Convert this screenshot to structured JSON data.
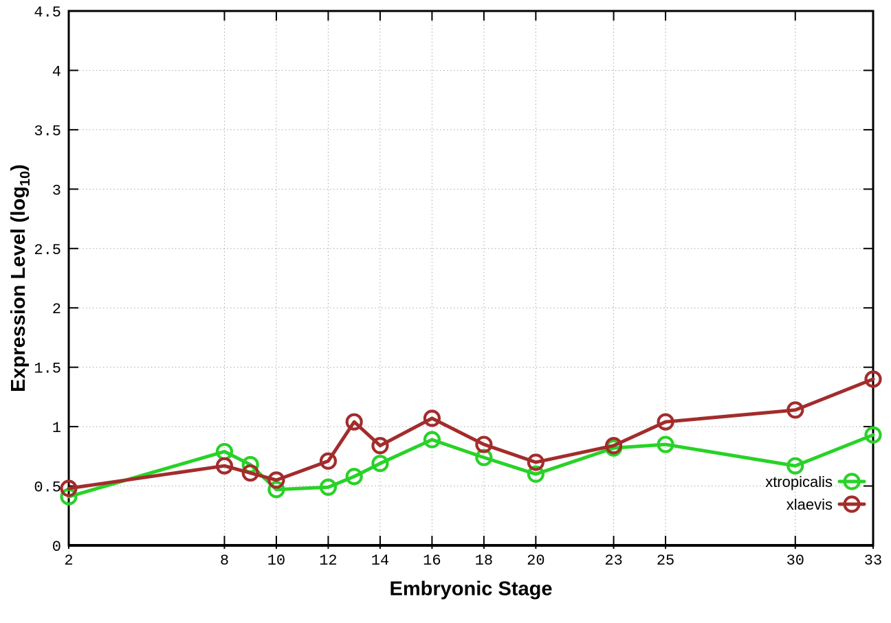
{
  "chart_data": {
    "type": "line",
    "title": "",
    "xlabel": "Embryonic Stage",
    "ylabel": "Expression Level (log10)",
    "ylabel_parts": {
      "main": "Expression Level (log",
      "sub": "10",
      "end": ")"
    },
    "x": [
      2,
      8,
      9,
      10,
      12,
      13,
      14,
      16,
      18,
      20,
      23,
      25,
      30,
      33
    ],
    "series": [
      {
        "name": "xtropicalis",
        "color": "#28d228",
        "values": [
          0.41,
          0.79,
          0.68,
          0.47,
          0.49,
          0.58,
          0.69,
          0.89,
          0.74,
          0.6,
          0.82,
          0.85,
          0.67,
          0.93
        ]
      },
      {
        "name": "xlaevis",
        "color": "#a32c2c",
        "values": [
          0.48,
          0.67,
          0.61,
          0.55,
          0.71,
          1.04,
          0.84,
          1.07,
          0.85,
          0.7,
          0.84,
          1.04,
          1.14,
          1.4
        ]
      }
    ],
    "xlim": [
      2,
      33
    ],
    "ylim": [
      0,
      4.5
    ],
    "x_ticks": [
      2,
      8,
      10,
      12,
      14,
      16,
      18,
      20,
      23,
      25,
      30,
      33
    ],
    "x_tick_labels": [
      "2",
      "8",
      "10",
      "12",
      "14",
      "16",
      "18",
      "20",
      "23",
      "25",
      "30",
      "33"
    ],
    "y_ticks": [
      0,
      0.5,
      1,
      1.5,
      2,
      2.5,
      3,
      3.5,
      4,
      4.5
    ],
    "y_tick_labels": [
      "0",
      "0.5",
      "1",
      "1.5",
      "2",
      "2.5",
      "3",
      "3.5",
      "4",
      "4.5"
    ],
    "grid": true,
    "legend_position": "inside-right-bottom",
    "legend_entries": [
      "xtropicalis",
      "xlaevis"
    ]
  },
  "style_colors": {
    "grid": "#a8a8a8",
    "border": "#000000",
    "background": "#ffffff"
  }
}
